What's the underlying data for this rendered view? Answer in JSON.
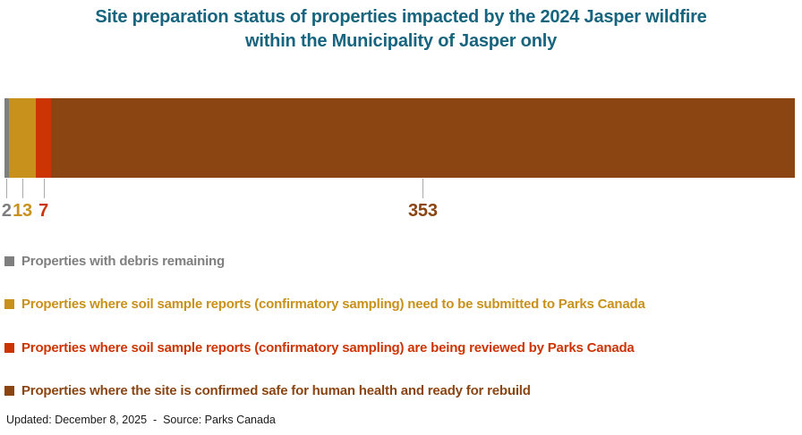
{
  "title": {
    "line1": "Site preparation status of properties impacted by the 2024 Jasper wildfire",
    "line2": "within the Municipality of Jasper only",
    "color": "#17647E"
  },
  "chart_data": {
    "type": "bar",
    "orientation": "horizontal",
    "stacked": true,
    "single_bar": true,
    "title": "Site preparation status of properties impacted by the 2024 Jasper wildfire within the Municipality of Jasper only",
    "total": 375,
    "series": [
      {
        "name": "Properties with debris remaining",
        "value": 2,
        "data_label": "2",
        "color": "#7F7F7F"
      },
      {
        "name": "Properties where soil sample reports (confirmatory sampling) need to be submitted to Parks Canada",
        "value": 13,
        "data_label": "13",
        "color": "#C8911B"
      },
      {
        "name": "Properties where soil sample reports (confirmatory sampling) are being reviewed by Parks Canada",
        "value": 7,
        "data_label": "7",
        "color": "#CD3403"
      },
      {
        "name": "Properties where the site is confirmed safe for human health and ready for rebuild",
        "value": 353,
        "data_label": "353",
        "color": "#8B4513"
      }
    ],
    "legend_position": "bottom",
    "leader_line_color": "#ABABAB",
    "background": "#FFFFFF"
  },
  "footer": {
    "text": "Updated: December 8, 2025  -  Source: Parks Canada"
  }
}
